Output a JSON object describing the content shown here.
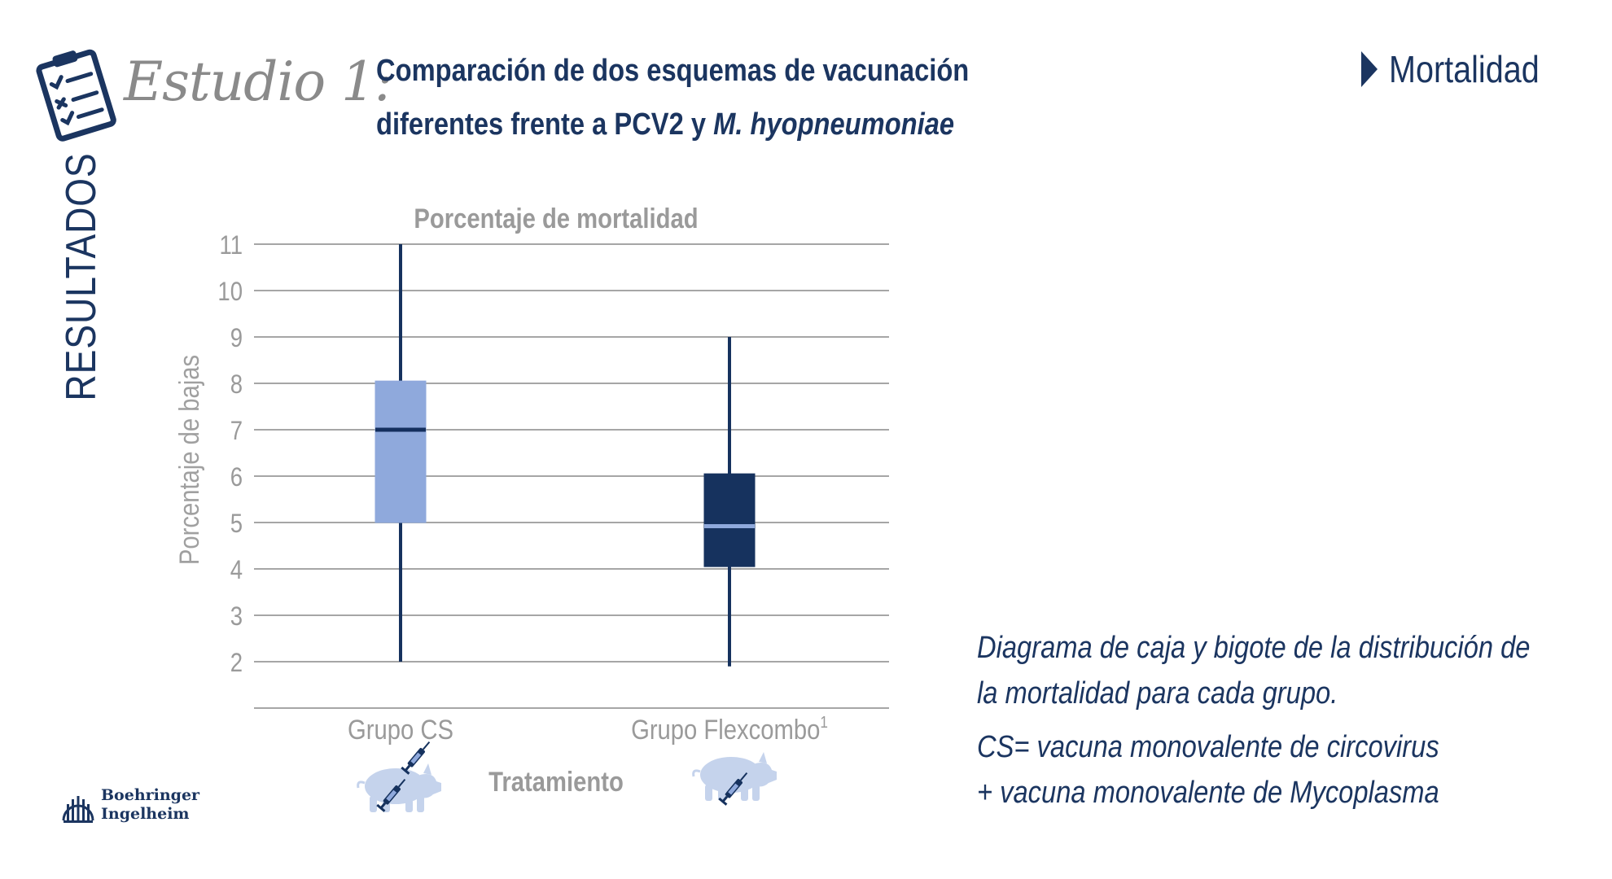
{
  "header": {
    "study_label": "Estudio 1:",
    "title_line1": "Comparación de dos esquemas de vacunación",
    "title_line2_plain": "diferentes frente a PCV2 y ",
    "title_line2_italic": "M. hyopneumoniae",
    "section_tag": "Mortalidad",
    "icon": "clipboard-checklist-icon"
  },
  "side_label": "RESULTADOS",
  "chart_data": {
    "type": "boxplot",
    "title": "Porcentaje de mortalidad",
    "xlabel": "Tratamiento",
    "ylabel": "Porcentaje de bajas",
    "ylim": [
      1,
      11
    ],
    "yticks": [
      2,
      3,
      4,
      5,
      6,
      7,
      8,
      9,
      10,
      11
    ],
    "grid": true,
    "categories": [
      "Grupo CS",
      "Grupo Flexcombo"
    ],
    "category_superscripts": [
      "",
      "1"
    ],
    "category_icons": [
      "pig-two-syringes-icon",
      "pig-one-syringe-icon"
    ],
    "series": [
      {
        "name": "Grupo CS",
        "min": 2,
        "q1": 5,
        "median": 7,
        "q3": 8.05,
        "max": 11,
        "color": "#8fa9dc",
        "median_color": "#142f5e"
      },
      {
        "name": "Grupo Flexcombo",
        "min": 1.9,
        "q1": 4.05,
        "median": 4.92,
        "q3": 6.05,
        "max": 9,
        "color": "#16325e",
        "median_color": "#8fa9dc"
      }
    ]
  },
  "notes": {
    "line1": "Diagrama de caja y bigote de la distribución de",
    "line2": "la mortalidad para cada grupo.",
    "line3": "CS= vacuna monovalente de circovirus",
    "line4": "+ vacuna monovalente de Mycoplasma"
  },
  "logo": {
    "line1": "Boehringer",
    "line2": "Ingelheim",
    "icon": "boehringer-logo-icon"
  },
  "colors": {
    "navy": "#1b3560",
    "light_blue": "#8fa9dc",
    "gray_text": "#9a9a9a",
    "pig": "#c5d3ec"
  }
}
